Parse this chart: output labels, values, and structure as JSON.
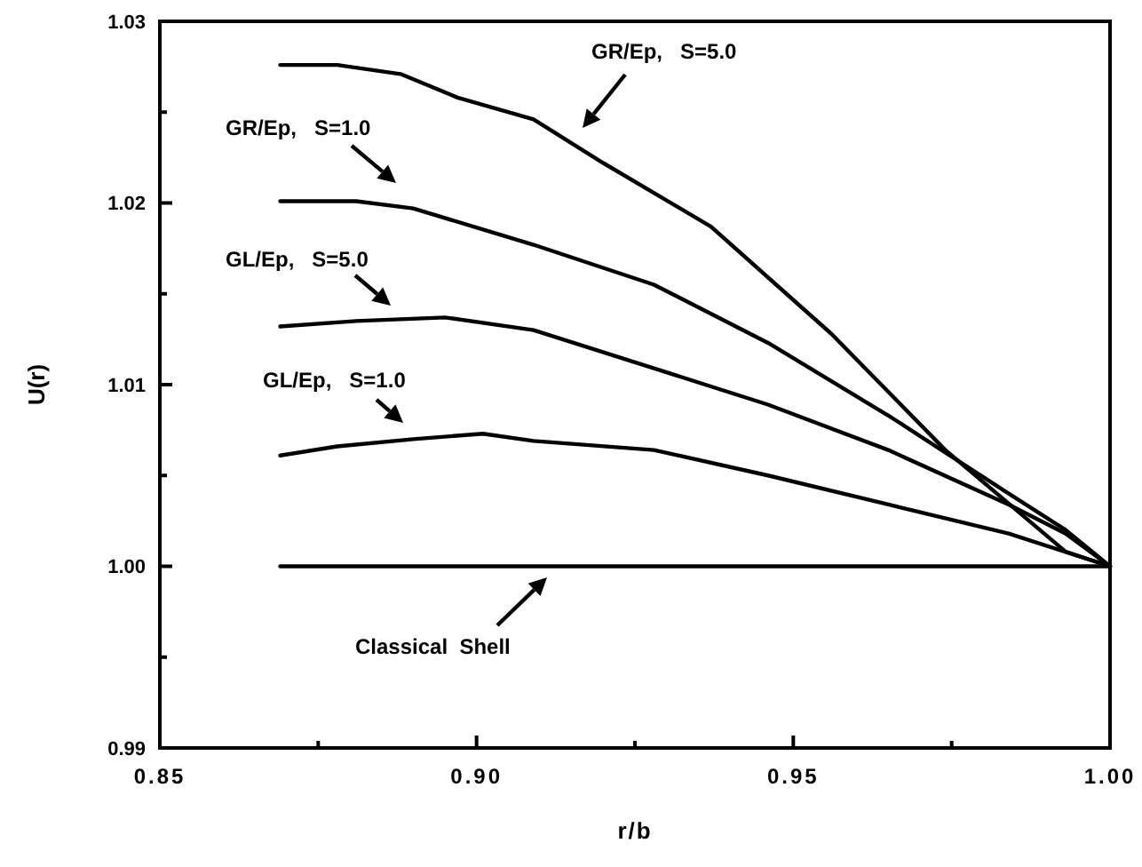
{
  "chart_data": {
    "type": "line",
    "xlabel": "r/b",
    "ylabel": "U(r)",
    "xlim": [
      0.85,
      1.0
    ],
    "ylim": [
      0.99,
      1.03
    ],
    "xticks": [
      0.85,
      {
        "value": 0.875,
        "label": null
      },
      {
        "value": 0.9,
        "label": "0.90"
      },
      {
        "value": 0.925,
        "label": null
      },
      0.95,
      {
        "value": 0.975,
        "label": null
      },
      {
        "value": 1.0,
        "label": "1.00"
      }
    ],
    "yticks": [
      0.99,
      {
        "value": 0.995,
        "label": null
      },
      {
        "value": 1.0,
        "label": "1.00"
      },
      {
        "value": 1.005,
        "label": null
      },
      1.01,
      {
        "value": 1.015,
        "label": null
      },
      1.02,
      {
        "value": 1.025,
        "label": null
      },
      1.03
    ],
    "grid": false,
    "marker": "none",
    "line_style": "solid",
    "series": [
      {
        "color": "#000000",
        "x": [
          0.869,
          0.878,
          0.888,
          0.897,
          0.909,
          0.92,
          0.937,
          0.956,
          0.974,
          0.993,
          1.0
        ],
        "values": [
          1.0276,
          1.0276,
          1.0271,
          1.0258,
          1.0246,
          1.0222,
          1.0187,
          1.0128,
          1.0064,
          1.0008,
          1.0
        ]
      },
      {
        "color": "#000000",
        "x": [
          0.869,
          0.881,
          0.89,
          0.909,
          0.928,
          0.946,
          0.965,
          0.984,
          0.993,
          1.0
        ],
        "values": [
          1.0201,
          1.0201,
          1.0197,
          1.0177,
          1.0155,
          1.0123,
          1.0083,
          1.004,
          1.002,
          1.0
        ]
      },
      {
        "color": "#000000",
        "x": [
          0.869,
          0.881,
          0.895,
          0.909,
          0.928,
          0.946,
          0.965,
          0.984,
          0.993,
          1.0
        ],
        "values": [
          1.0132,
          1.0135,
          1.0137,
          1.013,
          1.0109,
          1.0089,
          1.0064,
          1.0034,
          1.0018,
          1.0
        ]
      },
      {
        "color": "#000000",
        "x": [
          0.869,
          0.878,
          0.89,
          0.901,
          0.909,
          0.928,
          0.946,
          0.965,
          0.984,
          1.0
        ],
        "values": [
          1.0061,
          1.0066,
          1.007,
          1.0073,
          1.0069,
          1.0064,
          1.005,
          1.0034,
          1.0018,
          1.0
        ]
      },
      {
        "color": "#000000",
        "x": [
          0.869,
          1.0
        ],
        "values": [
          1.0,
          1.0
        ]
      }
    ],
    "annotations": [
      "GR/Ep,   S=5.0",
      "GR/Ep,   S=1.0",
      "GL/Ep,   S=5.0",
      "GL/Ep,   S=1.0",
      "Classical  Shell"
    ]
  }
}
